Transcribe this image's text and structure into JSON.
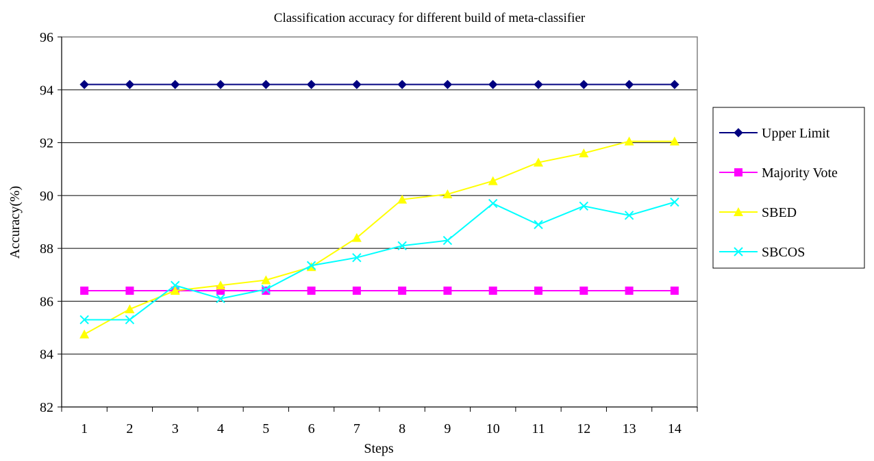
{
  "chart_data": {
    "type": "line",
    "title": "Classification accuracy for different build of meta-classifier",
    "xlabel": "Steps",
    "ylabel": "Accuracy(%)",
    "categories": [
      "1",
      "2",
      "3",
      "4",
      "5",
      "6",
      "7",
      "8",
      "9",
      "10",
      "11",
      "12",
      "13",
      "14"
    ],
    "ylim": [
      82,
      96
    ],
    "yticks": [
      "82",
      "84",
      "86",
      "88",
      "90",
      "92",
      "94",
      "96"
    ],
    "grid": "horizontal",
    "legend_position": "right",
    "series": [
      {
        "name": "Upper Limit",
        "color": "#000080",
        "marker": "diamond",
        "values": [
          94.2,
          94.2,
          94.2,
          94.2,
          94.2,
          94.2,
          94.2,
          94.2,
          94.2,
          94.2,
          94.2,
          94.2,
          94.2,
          94.2
        ]
      },
      {
        "name": "Majority Vote",
        "color": "#FF00FF",
        "marker": "square",
        "values": [
          86.4,
          86.4,
          86.4,
          86.4,
          86.4,
          86.4,
          86.4,
          86.4,
          86.4,
          86.4,
          86.4,
          86.4,
          86.4,
          86.4
        ]
      },
      {
        "name": "SBED",
        "color": "#FFFF00",
        "marker": "triangle",
        "values": [
          84.75,
          85.7,
          86.4,
          86.6,
          86.8,
          87.3,
          88.4,
          89.85,
          90.05,
          90.55,
          91.25,
          91.6,
          92.05,
          92.05
        ]
      },
      {
        "name": "SBCOS",
        "color": "#00FFFF",
        "marker": "x",
        "values": [
          85.3,
          85.3,
          86.6,
          86.1,
          86.45,
          87.35,
          87.65,
          88.1,
          88.3,
          89.7,
          88.9,
          89.6,
          89.25,
          89.75
        ]
      }
    ]
  }
}
